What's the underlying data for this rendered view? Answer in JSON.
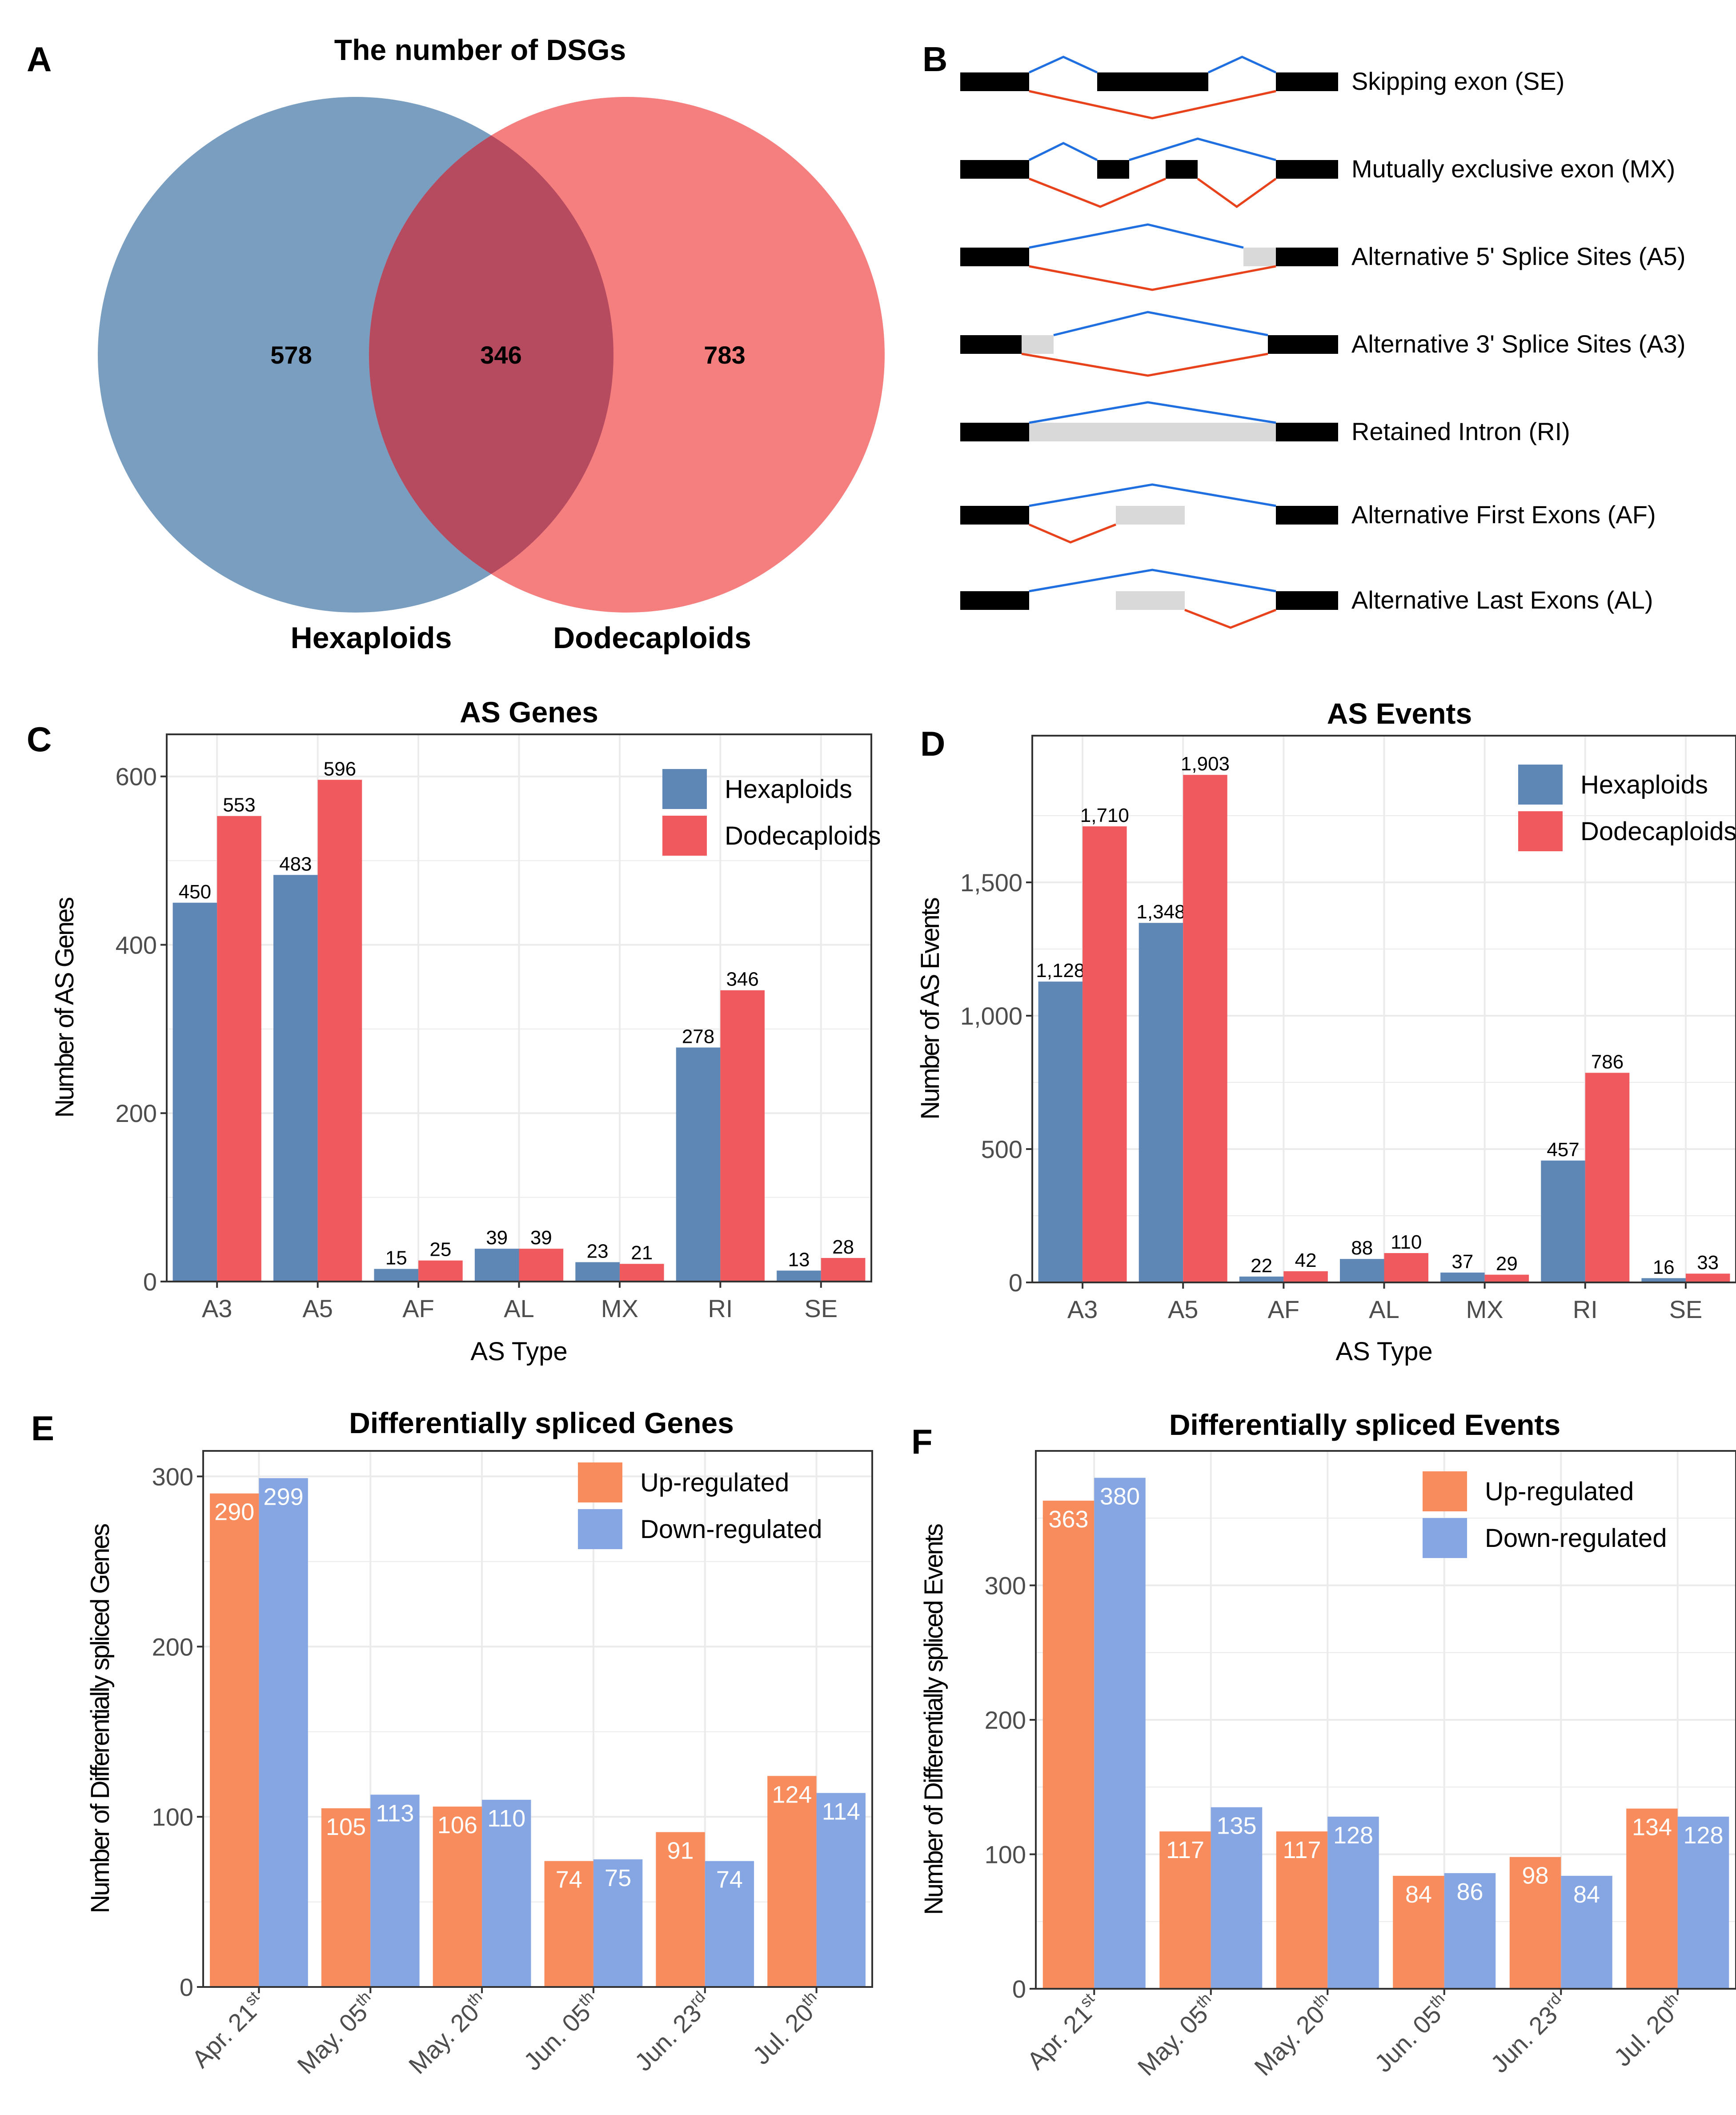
{
  "colors": {
    "hexaploids": "#5E87B5",
    "dodecaploids": "#F05A5E",
    "venn_blue": "#7A9EC0",
    "venn_red": "#F57E7F",
    "venn_overlap": "#B64B60",
    "up": "#F98C5C",
    "down": "#86A6E3",
    "inclusion_line": "#1F6FE0",
    "exclusion_line": "#E8421C",
    "exon": "#000000",
    "alt_region": "#D9D9D9",
    "grid": "#EBEBEB",
    "panel_border": "#333333"
  },
  "panel_labels": [
    "A",
    "B",
    "C",
    "D",
    "E",
    "F"
  ],
  "venn": {
    "title": "The number of DSGs",
    "left_set": "Hexaploids",
    "right_set": "Dodecaploids",
    "left_only": "578",
    "overlap": "346",
    "right_only": "783"
  },
  "as_types": {
    "items": [
      {
        "id": "SE",
        "label": "Skipping exon (SE)"
      },
      {
        "id": "MX",
        "label": "Mutually exclusive exon (MX)"
      },
      {
        "id": "A5",
        "label": "Alternative 5' Splice Sites (A5)"
      },
      {
        "id": "A3",
        "label": "Alternative 3' Splice Sites (A3)"
      },
      {
        "id": "RI",
        "label": "Retained Intron (RI)"
      },
      {
        "id": "AF",
        "label": "Alternative First Exons (AF)"
      },
      {
        "id": "AL",
        "label": "Alternative Last Exons (AL)"
      }
    ]
  },
  "chart_data": [
    {
      "panel": "C",
      "type": "bar",
      "title": "AS Genes",
      "xlabel": "AS Type",
      "ylabel": "Number of AS Genes",
      "categories": [
        "A3",
        "A5",
        "AF",
        "AL",
        "MX",
        "RI",
        "SE"
      ],
      "ylim": [
        0,
        650
      ],
      "yticks": [
        0,
        200,
        400,
        600
      ],
      "ytick_labels": [
        "0",
        "200",
        "400",
        "600"
      ],
      "legend": "top-right",
      "series": [
        {
          "name": "Hexaploids",
          "values": [
            450,
            483,
            15,
            39,
            23,
            278,
            13
          ],
          "labels": [
            "450",
            "483",
            "15",
            "39",
            "23",
            "278",
            "13"
          ]
        },
        {
          "name": "Dodecaploids",
          "values": [
            553,
            596,
            25,
            39,
            21,
            346,
            28
          ],
          "labels": [
            "553",
            "596",
            "25",
            "39",
            "21",
            "346",
            "28"
          ]
        }
      ]
    },
    {
      "panel": "D",
      "type": "bar",
      "title": "AS Events",
      "xlabel": "AS Type",
      "ylabel": "Number of AS Events",
      "categories": [
        "A3",
        "A5",
        "AF",
        "AL",
        "MX",
        "RI",
        "SE"
      ],
      "ylim": [
        0,
        2050
      ],
      "yticks": [
        0,
        500,
        1000,
        1500
      ],
      "ytick_labels": [
        "0",
        "500",
        "1,000",
        "1,500"
      ],
      "legend": "top-right",
      "series": [
        {
          "name": "Hexaploids",
          "values": [
            1128,
            1348,
            22,
            88,
            37,
            457,
            16
          ],
          "labels": [
            "1,128",
            "1,348",
            "22",
            "88",
            "37",
            "457",
            "16"
          ]
        },
        {
          "name": "Dodecaploids",
          "values": [
            1710,
            1903,
            42,
            110,
            29,
            786,
            33
          ],
          "labels": [
            "1,710",
            "1,903",
            "42",
            "110",
            "29",
            "786",
            "33"
          ]
        }
      ]
    },
    {
      "panel": "E",
      "type": "bar",
      "title": "Differentially spliced Genes",
      "xlabel": "",
      "ylabel": "Number of Differentially spliced Genes",
      "categories": [
        {
          "base": "Apr. 21",
          "sup": "st"
        },
        {
          "base": "May. 05",
          "sup": "th"
        },
        {
          "base": "May. 20",
          "sup": "th"
        },
        {
          "base": "Jun. 05",
          "sup": "th"
        },
        {
          "base": "Jun. 23",
          "sup": "rd"
        },
        {
          "base": "Jul. 20",
          "sup": "th"
        }
      ],
      "ylim": [
        0,
        315
      ],
      "yticks": [
        0,
        100,
        200,
        300
      ],
      "ytick_labels": [
        "0",
        "100",
        "200",
        "300"
      ],
      "legend": "top-right",
      "series": [
        {
          "name": "Up-regulated",
          "values": [
            290,
            105,
            106,
            74,
            91,
            124
          ],
          "labels": [
            "290",
            "105",
            "106",
            "74",
            "91",
            "124"
          ]
        },
        {
          "name": "Down-regulated",
          "values": [
            299,
            113,
            110,
            75,
            74,
            114
          ],
          "labels": [
            "299",
            "113",
            "110",
            "75",
            "74",
            "114"
          ]
        }
      ]
    },
    {
      "panel": "F",
      "type": "bar",
      "title": "Differentially spliced Events",
      "xlabel": "",
      "ylabel": "Number of Differentially spliced Events",
      "categories": [
        {
          "base": "Apr. 21",
          "sup": "st"
        },
        {
          "base": "May. 05",
          "sup": "th"
        },
        {
          "base": "May. 20",
          "sup": "th"
        },
        {
          "base": "Jun. 05",
          "sup": "th"
        },
        {
          "base": "Jun. 23",
          "sup": "rd"
        },
        {
          "base": "Jul. 20",
          "sup": "th"
        }
      ],
      "ylim": [
        0,
        400
      ],
      "yticks": [
        0,
        100,
        200,
        300
      ],
      "ytick_labels": [
        "0",
        "100",
        "200",
        "300"
      ],
      "legend": "top-right",
      "series": [
        {
          "name": "Up-regulated",
          "values": [
            363,
            117,
            117,
            84,
            98,
            134
          ],
          "labels": [
            "363",
            "117",
            "117",
            "84",
            "98",
            "134"
          ]
        },
        {
          "name": "Down-regulated",
          "values": [
            380,
            135,
            128,
            86,
            84,
            128
          ],
          "labels": [
            "380",
            "135",
            "128",
            "86",
            "84",
            "128"
          ]
        }
      ]
    }
  ]
}
